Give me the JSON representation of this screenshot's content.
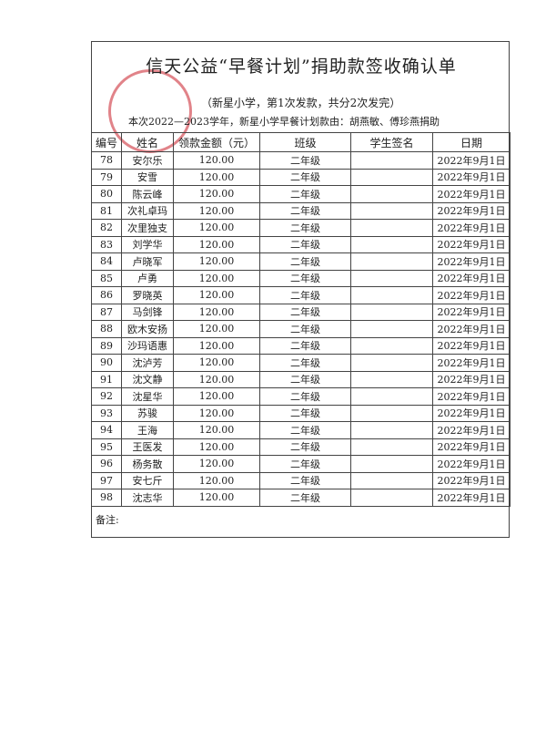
{
  "header": {
    "title": "信天公益“早餐计划”捐助款签收确认单",
    "subtitle": "（新星小学，第1次发款，共分2次发完）",
    "note": "本次2022—2023学年，新星小学早餐计划款由：胡燕敏、傅珍燕捐助"
  },
  "table": {
    "columns": [
      "编号",
      "姓名",
      "领款金额（元）",
      "班级",
      "学生签名",
      "日期"
    ],
    "rows": [
      [
        "78",
        "安尔乐",
        "120.00",
        "二年级",
        "2022年9月1日"
      ],
      [
        "79",
        "安雪",
        "120.00",
        "二年级",
        "2022年9月1日"
      ],
      [
        "80",
        "陈云峰",
        "120.00",
        "二年级",
        "2022年9月1日"
      ],
      [
        "81",
        "次礼卓玛",
        "120.00",
        "二年级",
        "2022年9月1日"
      ],
      [
        "82",
        "次里独支",
        "120.00",
        "二年级",
        "2022年9月1日"
      ],
      [
        "83",
        "刘学华",
        "120.00",
        "二年级",
        "2022年9月1日"
      ],
      [
        "84",
        "卢晓军",
        "120.00",
        "二年级",
        "2022年9月1日"
      ],
      [
        "85",
        "卢勇",
        "120.00",
        "二年级",
        "2022年9月1日"
      ],
      [
        "86",
        "罗晓英",
        "120.00",
        "二年级",
        "2022年9月1日"
      ],
      [
        "87",
        "马剑锋",
        "120.00",
        "二年级",
        "2022年9月1日"
      ],
      [
        "88",
        "欧木安扬",
        "120.00",
        "二年级",
        "2022年9月1日"
      ],
      [
        "89",
        "沙玛语惠",
        "120.00",
        "二年级",
        "2022年9月1日"
      ],
      [
        "90",
        "沈泸芳",
        "120.00",
        "二年级",
        "2022年9月1日"
      ],
      [
        "91",
        "沈文静",
        "120.00",
        "二年级",
        "2022年9月1日"
      ],
      [
        "92",
        "沈星华",
        "120.00",
        "二年级",
        "2022年9月1日"
      ],
      [
        "93",
        "苏骏",
        "120.00",
        "二年级",
        "2022年9月1日"
      ],
      [
        "94",
        "王海",
        "120.00",
        "二年级",
        "2022年9月1日"
      ],
      [
        "95",
        "王医发",
        "120.00",
        "二年级",
        "2022年9月1日"
      ],
      [
        "96",
        "杨务散",
        "120.00",
        "二年级",
        "2022年9月1日"
      ],
      [
        "97",
        "安七斤",
        "120.00",
        "二年级",
        "2022年9月1日"
      ],
      [
        "98",
        "沈志华",
        "120.00",
        "二年级",
        "2022年9月1日"
      ]
    ]
  },
  "footer": {
    "remark": "备注:"
  }
}
